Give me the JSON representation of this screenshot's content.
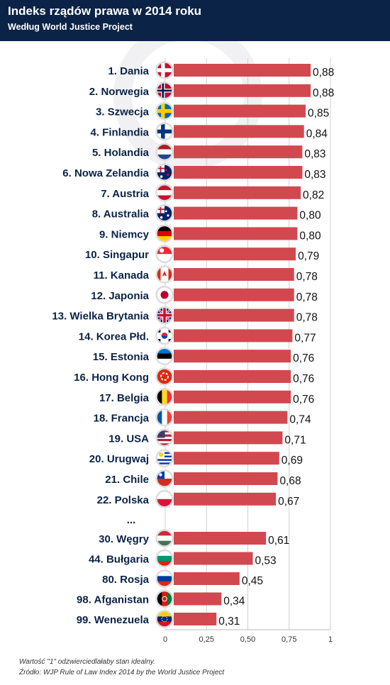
{
  "header": {
    "title": "Indeks rządów prawa w 2014 roku",
    "subtitle": "Według World Justice Project"
  },
  "footnotes": {
    "note": "Wartość \"1\" odzwierciedlałaby stan idealny.",
    "source": "Źródło: WJP Rule of Law Index 2014 by the World Justice Project"
  },
  "chart_data": {
    "type": "bar",
    "orientation": "horizontal",
    "title": "Indeks rządów prawa w 2014 roku",
    "subtitle": "Według World Justice Project",
    "xlim": [
      0,
      1
    ],
    "x_ticks": [
      "0",
      "0,25",
      "0,50",
      "0,75",
      "1"
    ],
    "grid": true,
    "bar_color": "#d2484f",
    "gap_label": "...",
    "categories": [
      "1. Dania",
      "2. Norwegia",
      "3. Szwecja",
      "4. Finlandia",
      "5. Holandia",
      "6. Nowa Zelandia",
      "7. Austria",
      "8. Australia",
      "9. Niemcy",
      "10. Singapur",
      "11. Kanada",
      "12. Japonia",
      "13. Wielka Brytania",
      "14. Korea Płd.",
      "15. Estonia",
      "16. Hong Kong",
      "17. Belgia",
      "18. Francja",
      "19. USA",
      "20. Urugwaj",
      "21. Chile",
      "22. Polska",
      "30. Węgry",
      "44. Bułgaria",
      "80. Rosja",
      "98. Afganistan",
      "99. Wenezuela"
    ],
    "values": [
      0.88,
      0.88,
      0.85,
      0.84,
      0.83,
      0.83,
      0.82,
      0.8,
      0.8,
      0.79,
      0.78,
      0.78,
      0.78,
      0.77,
      0.76,
      0.76,
      0.76,
      0.74,
      0.71,
      0.69,
      0.68,
      0.67,
      0.61,
      0.53,
      0.45,
      0.34,
      0.31
    ],
    "value_labels": [
      "0,88",
      "0,88",
      "0,85",
      "0,84",
      "0,83",
      "0,83",
      "0,82",
      "0,80",
      "0,80",
      "0,79",
      "0,78",
      "0,78",
      "0,78",
      "0,77",
      "0,76",
      "0,76",
      "0,76",
      "0,74",
      "0,71",
      "0,69",
      "0,68",
      "0,67",
      "0,61",
      "0,53",
      "0,45",
      "0,34",
      "0,31"
    ],
    "flags": [
      "denmark-flag",
      "norway-flag",
      "sweden-flag",
      "finland-flag",
      "netherlands-flag",
      "new-zealand-flag",
      "austria-flag",
      "australia-flag",
      "germany-flag",
      "singapore-flag",
      "canada-flag",
      "japan-flag",
      "uk-flag",
      "south-korea-flag",
      "estonia-flag",
      "hong-kong-flag",
      "belgium-flag",
      "france-flag",
      "usa-flag",
      "uruguay-flag",
      "chile-flag",
      "poland-flag",
      "hungary-flag",
      "bulgaria-flag",
      "russia-flag",
      "afghanistan-flag",
      "venezuela-flag"
    ]
  }
}
